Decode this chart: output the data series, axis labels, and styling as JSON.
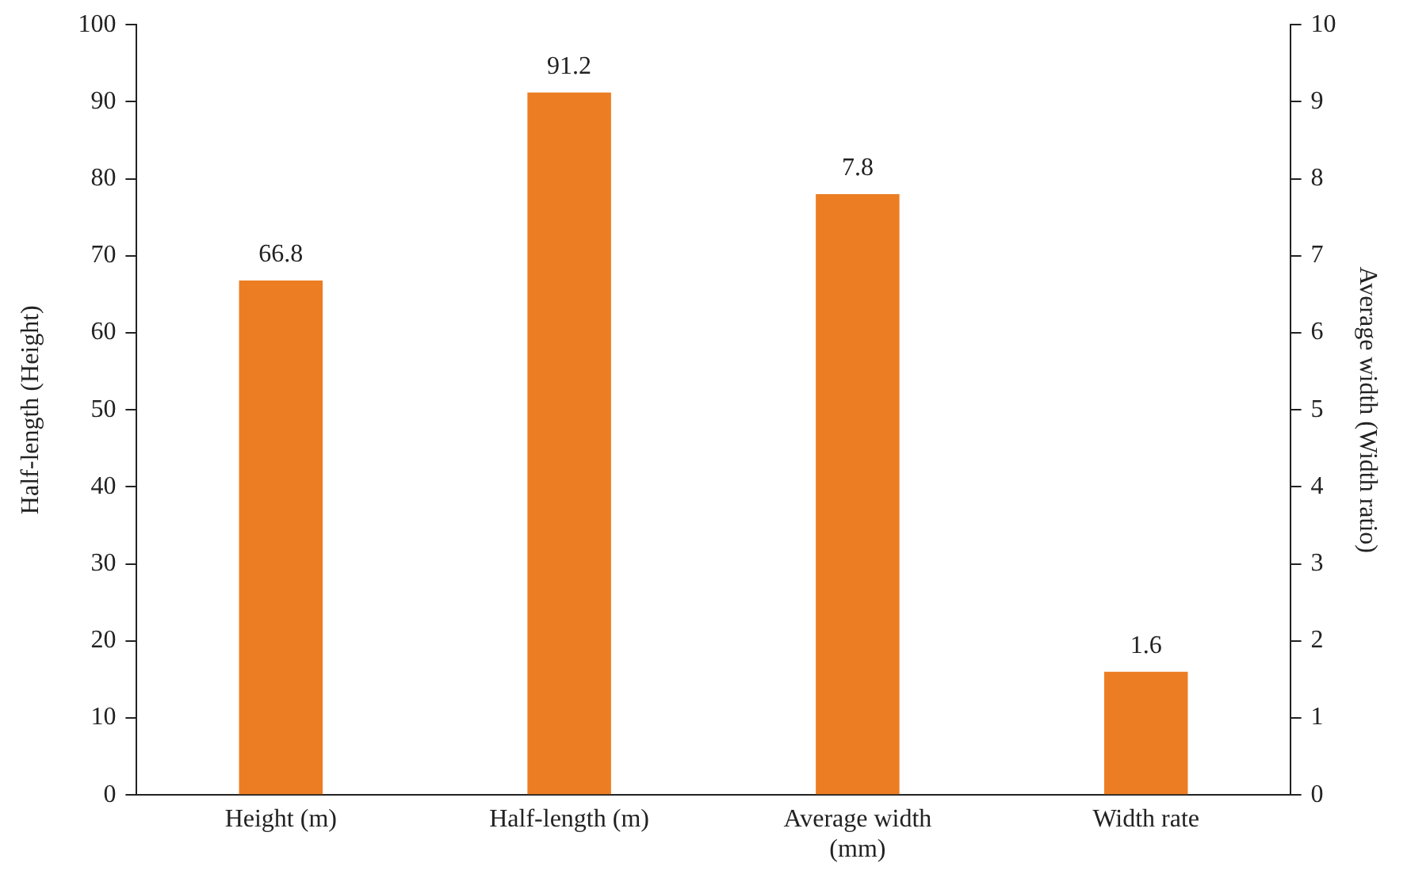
{
  "chart_data": {
    "type": "bar",
    "ylabel": "Half-length (Height)",
    "y2label": "Average width (Width ratio)",
    "categories": [
      "Height (m)",
      "Half-length (m)",
      "Average width (mm)",
      "Width rate"
    ],
    "series": [
      {
        "color": "#ed7d22",
        "values": [
          66.8,
          91.2,
          null,
          null
        ]
      },
      {
        "color": "#ed7d22",
        "axis": "y2",
        "values": [
          null,
          null,
          7.8,
          1.6
        ]
      }
    ],
    "ylim": [
      0,
      100
    ],
    "yticks": [
      0,
      10,
      20,
      30,
      40,
      50,
      60,
      70,
      80,
      90,
      100
    ],
    "y2lim": [
      0,
      10
    ],
    "y2ticks": [
      0,
      1,
      2,
      3,
      4,
      5,
      6,
      7,
      8,
      9,
      10
    ],
    "data_labels": true,
    "grid": false,
    "legend": false
  }
}
